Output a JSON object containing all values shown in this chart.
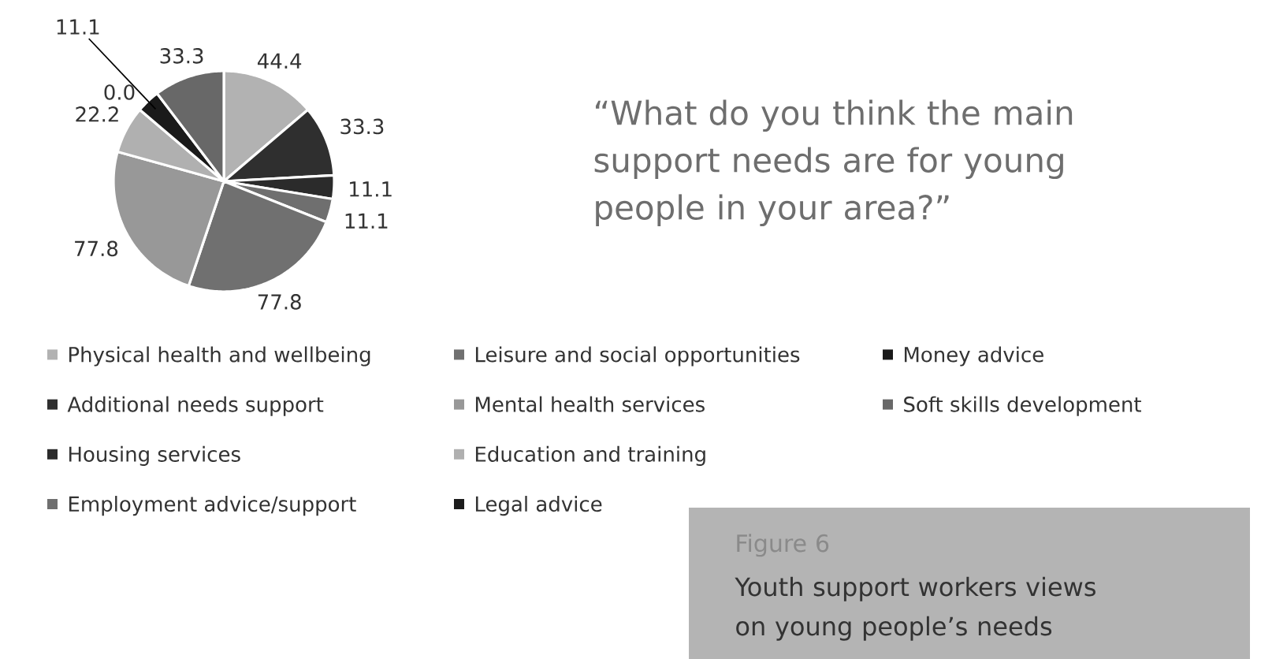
{
  "chart_data": {
    "type": "pie",
    "title": "“What do you think the main support needs are for young people in your area?”",
    "categories": [
      "Physical health and wellbeing",
      "Additional needs support",
      "Housing services",
      "Employment advice/support",
      "Leisure and social opportunities",
      "Mental health services",
      "Education and training",
      "Legal advice",
      "Money advice",
      "Soft skills development"
    ],
    "values": [
      44.4,
      33.3,
      11.1,
      11.1,
      77.8,
      77.8,
      22.2,
      0.0,
      11.1,
      33.3
    ],
    "value_labels": [
      "44.4",
      "33.3",
      "11.1",
      "11.1",
      "77.8",
      "77.8",
      "22.2",
      "0.0",
      "11.1",
      "33.3"
    ],
    "colors": [
      "#b2b2b2",
      "#2f2f2f",
      "#2b2b2b",
      "#6f6f6f",
      "#707070",
      "#989898",
      "#b0b0b0",
      "#1c1c1c",
      "#1a1a1a",
      "#686868"
    ],
    "legend": "bottom",
    "annotations": [
      "Figure 6",
      "Youth support workers views on young people’s needs"
    ]
  }
}
